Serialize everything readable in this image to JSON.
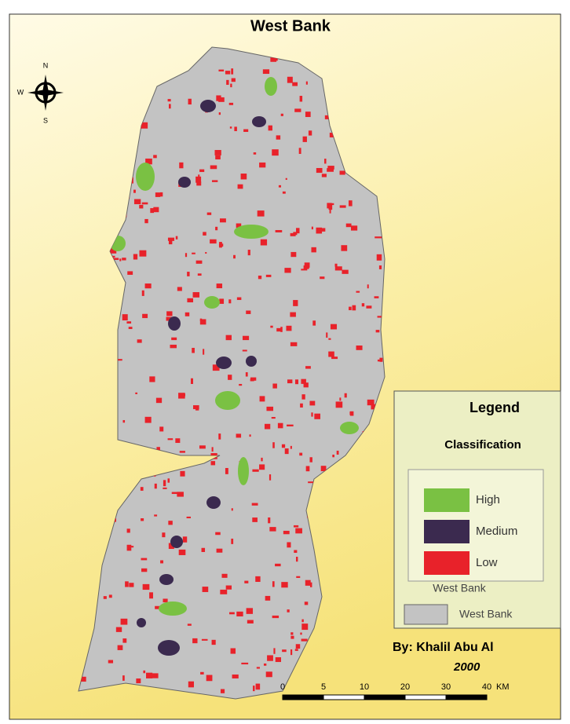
{
  "header": {
    "title": "West Bank"
  },
  "compass": {
    "north": "N",
    "west": "W",
    "south": "S"
  },
  "legend": {
    "title": "Legend",
    "group": "Classification",
    "items": [
      {
        "label": "High",
        "color": "#7ac143"
      },
      {
        "label": "Medium",
        "color": "#3b2a4f"
      },
      {
        "label": "Low",
        "color": "#e8222a"
      }
    ],
    "area_group": "West Bank",
    "area_item": {
      "label": "West Bank",
      "color": "#c3c3c3"
    }
  },
  "credit": {
    "author": "By: Khalil Abu Al",
    "year": "2000"
  },
  "scale_bar": {
    "labels": [
      "0",
      "5",
      "10",
      "20",
      "30",
      "40"
    ],
    "unit": "KM"
  }
}
